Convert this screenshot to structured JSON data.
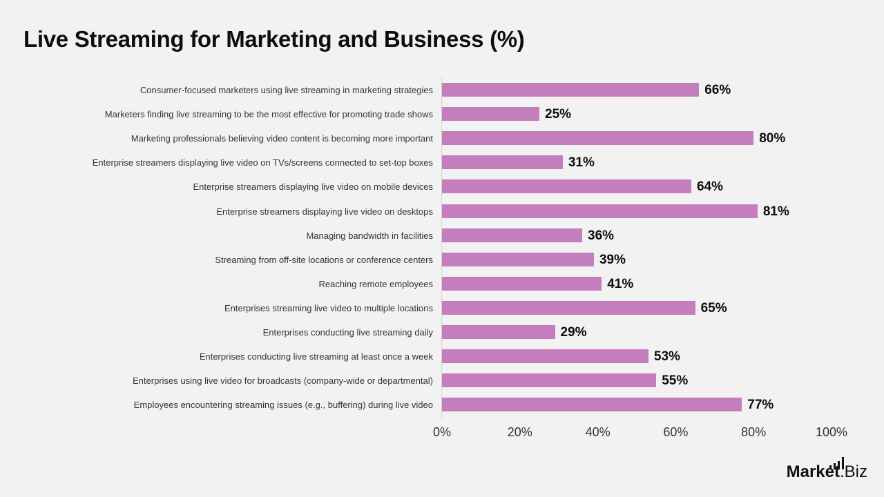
{
  "title": "Live Streaming for Marketing and Business (%)",
  "bar_color": "#c47dbd",
  "rows": [
    {
      "label": "Consumer-focused marketers using live streaming in marketing strategies",
      "value": 66,
      "display": "66%"
    },
    {
      "label": "Marketers finding live streaming to be the most effective for promoting trade shows",
      "value": 25,
      "display": "25%"
    },
    {
      "label": "Marketing professionals believing video content is becoming more important",
      "value": 80,
      "display": "80%"
    },
    {
      "label": "Enterprise streamers displaying live video on TVs/screens connected to set-top boxes",
      "value": 31,
      "display": "31%"
    },
    {
      "label": "Enterprise streamers displaying live video on mobile devices",
      "value": 64,
      "display": "64%"
    },
    {
      "label": "Enterprise streamers displaying live video on desktops",
      "value": 81,
      "display": "81%"
    },
    {
      "label": "Managing bandwidth in facilities",
      "value": 36,
      "display": "36%"
    },
    {
      "label": "Streaming from off-site locations or conference centers",
      "value": 39,
      "display": "39%"
    },
    {
      "label": "Reaching remote employees",
      "value": 41,
      "display": "41%"
    },
    {
      "label": "Enterprises streaming live video to multiple locations",
      "value": 65,
      "display": "65%"
    },
    {
      "label": "Enterprises conducting live streaming daily",
      "value": 29,
      "display": "29%"
    },
    {
      "label": "Enterprises conducting live streaming at least once a week",
      "value": 53,
      "display": "53%"
    },
    {
      "label": "Enterprises using live video for broadcasts (company-wide or departmental)",
      "value": 55,
      "display": "55%"
    },
    {
      "label": "Employees encountering streaming issues (e.g., buffering) during live video",
      "value": 77,
      "display": "77%"
    }
  ],
  "x_ticks": [
    "0%",
    "20%",
    "40%",
    "60%",
    "80%",
    "100%"
  ],
  "logo": {
    "bold": "Market",
    "normal": ".Biz"
  },
  "chart_data": {
    "type": "bar",
    "orientation": "horizontal",
    "title": "Live Streaming for Marketing and Business (%)",
    "categories": [
      "Consumer-focused marketers using live streaming in marketing strategies",
      "Marketers finding live streaming to be the most effective for promoting trade shows",
      "Marketing professionals believing video content is becoming more important",
      "Enterprise streamers displaying live video on TVs/screens connected to set-top boxes",
      "Enterprise streamers displaying live video on mobile devices",
      "Enterprise streamers displaying live video on desktops",
      "Managing bandwidth in facilities",
      "Streaming from off-site locations or conference centers",
      "Reaching remote employees",
      "Enterprises streaming live video to multiple locations",
      "Enterprises conducting live streaming daily",
      "Enterprises conducting live streaming at least once a week",
      "Enterprises using live video for broadcasts (company-wide or departmental)",
      "Employees encountering streaming issues (e.g., buffering) during live video"
    ],
    "values": [
      66,
      25,
      80,
      31,
      64,
      81,
      36,
      39,
      41,
      65,
      29,
      53,
      55,
      77
    ],
    "xlabel": "",
    "ylabel": "",
    "xlim": [
      0,
      100
    ],
    "x_tick_labels": [
      "0%",
      "20%",
      "40%",
      "60%",
      "80%",
      "100%"
    ],
    "grid": false,
    "legend": null,
    "data_labels": true
  }
}
